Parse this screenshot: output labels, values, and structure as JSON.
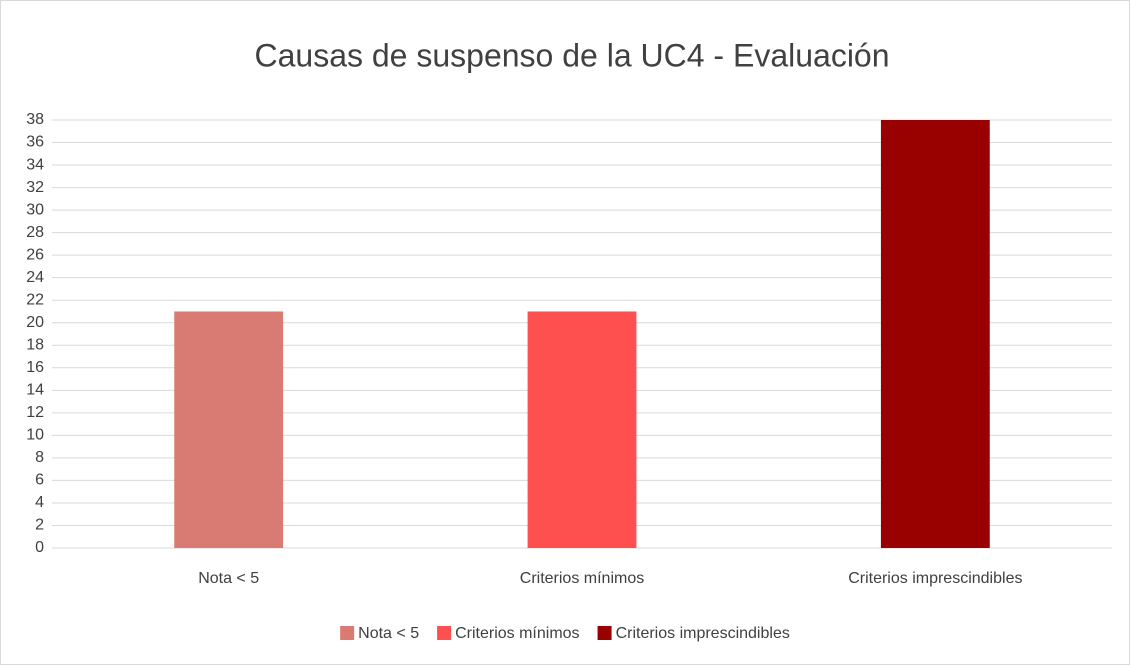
{
  "chart_data": {
    "type": "bar",
    "title": "Causas de suspenso de la UC4 - Evaluación",
    "categories": [
      "Nota < 5",
      "Criterios mínimos",
      "Criterios imprescindibles"
    ],
    "values": [
      21,
      21,
      38
    ],
    "colors": [
      "#d97b72",
      "#ff5050",
      "#990000"
    ],
    "ylim": [
      0,
      38
    ],
    "yticks": [
      0,
      2,
      4,
      6,
      8,
      10,
      12,
      14,
      16,
      18,
      20,
      22,
      24,
      26,
      28,
      30,
      32,
      34,
      36,
      38
    ],
    "grid": true,
    "legend": "bottom"
  }
}
